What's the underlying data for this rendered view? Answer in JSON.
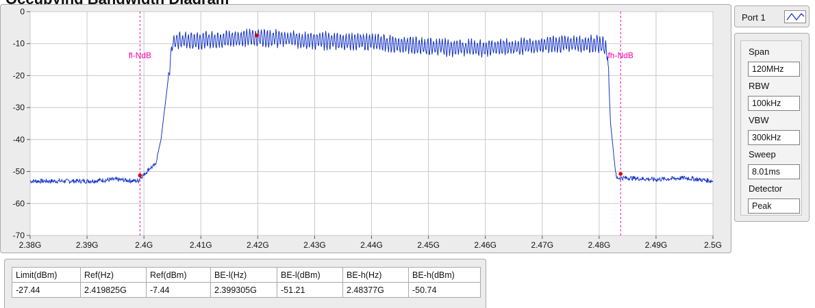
{
  "panel_title": "Occupying Bandwidth Diagram",
  "port": {
    "label": "Port 1",
    "icon": "trace-waveform-icon"
  },
  "settings": [
    {
      "label": "Span",
      "value": "120MHz"
    },
    {
      "label": "RBW",
      "value": "100kHz"
    },
    {
      "label": "VBW",
      "value": "300kHz"
    },
    {
      "label": "Sweep",
      "value": "8.01ms"
    },
    {
      "label": "Detector",
      "value": "Peak"
    }
  ],
  "results_table": {
    "headers": [
      "Limit(dBm)",
      "Ref(Hz)",
      "Ref(dBm)",
      "BE-l(Hz)",
      "BE-l(dBm)",
      "BE-h(Hz)",
      "BE-h(dBm)"
    ],
    "rows": [
      [
        "-27.44",
        "2.419825G",
        "-7.44",
        "2.399305G",
        "-51.21",
        "2.48377G",
        "-50.74"
      ]
    ]
  },
  "colors": {
    "trace": "#1432c8",
    "marker": "#ff00aa",
    "point": "#e00000",
    "plot_bg": "#ffffff",
    "grid": "#c8c8c8"
  },
  "chart_data": {
    "type": "line",
    "xlim": [
      2.38,
      2.5
    ],
    "ylim": [
      -70,
      0
    ],
    "x_ticks": [
      2.38,
      2.39,
      2.4,
      2.41,
      2.42,
      2.43,
      2.44,
      2.45,
      2.46,
      2.47,
      2.48,
      2.49,
      2.5
    ],
    "x_tick_labels": [
      "2.38G",
      "2.39G",
      "2.4G",
      "2.41G",
      "2.42G",
      "2.43G",
      "2.44G",
      "2.45G",
      "2.46G",
      "2.47G",
      "2.48G",
      "2.49G",
      "2.5G"
    ],
    "y_ticks": [
      0,
      -10,
      -20,
      -30,
      -40,
      -50,
      -60,
      -70
    ],
    "y_tick_labels": [
      "0",
      "-10",
      "-20",
      "-30",
      "-40",
      "-50",
      "-60",
      "-70"
    ],
    "grid": true,
    "series": [
      {
        "color": "#1432c8",
        "x": [
          2.38,
          2.385,
          2.39,
          2.395,
          2.399,
          2.3993,
          2.4,
          2.401,
          2.402,
          2.403,
          2.404,
          2.405,
          2.406,
          2.41,
          2.415,
          2.42,
          2.43,
          2.44,
          2.45,
          2.46,
          2.47,
          2.475,
          2.479,
          2.4805,
          2.481,
          2.4815,
          2.482,
          2.483,
          2.4835,
          2.485,
          2.49,
          2.495,
          2.5
        ],
        "y": [
          -53,
          -53,
          -53,
          -52.5,
          -53,
          -52,
          -51,
          -49,
          -48,
          -40,
          -25,
          -10,
          -9,
          -9,
          -8.5,
          -8,
          -9,
          -9.5,
          -11,
          -11.5,
          -10.5,
          -10,
          -10,
          -10.5,
          -11,
          -13,
          -35,
          -52,
          -52,
          -52,
          -52.5,
          -52,
          -53
        ]
      }
    ],
    "vertical_markers": [
      {
        "x": 2.399305,
        "label": "fl-NdB"
      },
      {
        "x": 2.48377,
        "label": "fh-NdB"
      }
    ],
    "points": [
      {
        "x": 2.399305,
        "y": -51.21
      },
      {
        "x": 2.419825,
        "y": -7.44
      },
      {
        "x": 2.48377,
        "y": -50.74
      }
    ]
  }
}
